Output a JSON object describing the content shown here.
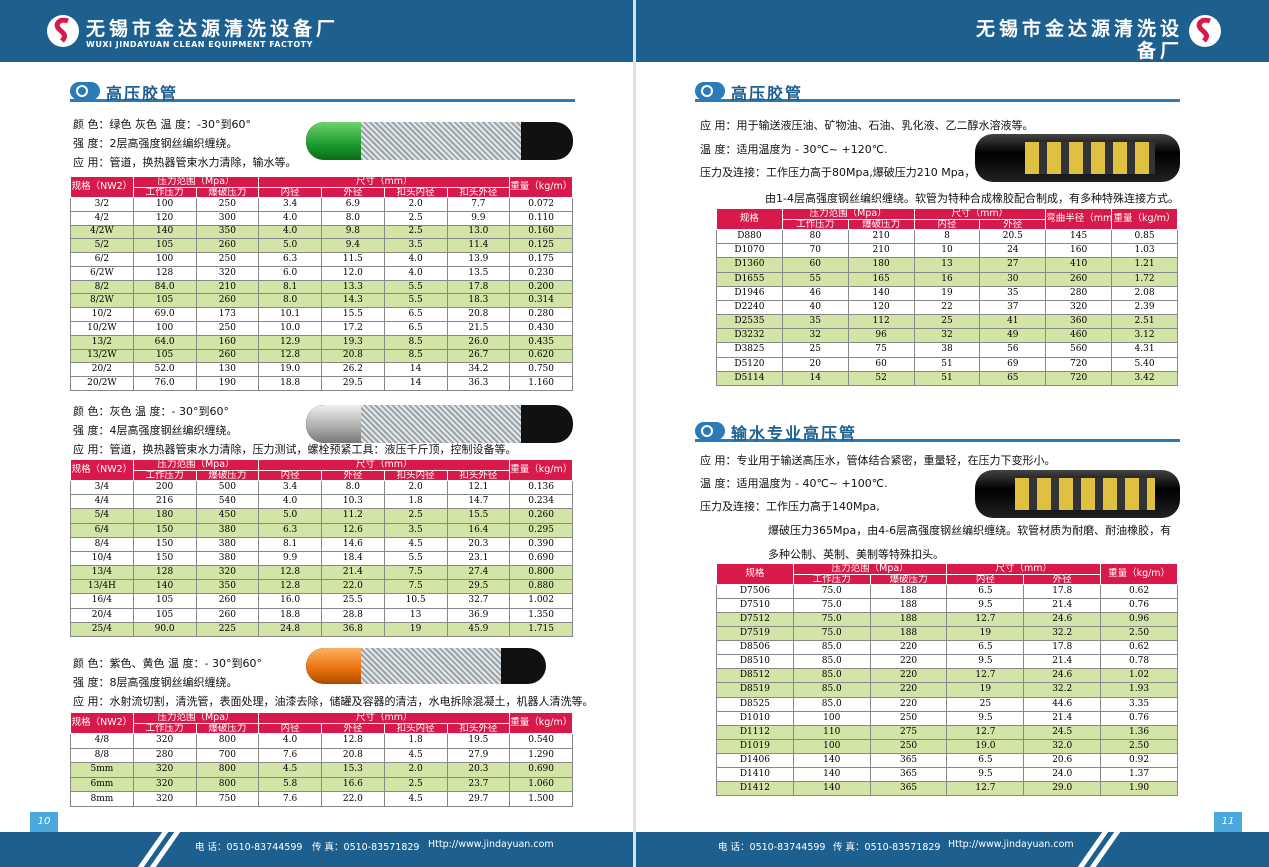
{
  "header": {
    "name": "无锡市金达源清洗设备厂",
    "name_en": "WUXI JINDAYUAN CLEAN EQUIPMENT FACTOTY"
  },
  "footer": {
    "phone": "电 话：0510-83744599",
    "fax": "传 真：0510-83571829",
    "url": "Http://www.jindayuan.com"
  },
  "page_numbers": [
    "10",
    "11"
  ],
  "left_page": {
    "section_title": "高压胶管",
    "products": [
      {
        "lines": [
          "颜 色：绿色 灰色 温 度：-30°到60°",
          "强 度：2层高强度钢丝编织缠绕。",
          "应 用：管道，换热器管束水力清除，输水等。"
        ],
        "table": {
          "columns": [
            {
              "label": "规格（NW2）"
            },
            {
              "label": "压力范围（Mpa）",
              "sub": [
                "工作压力",
                "爆破压力"
              ]
            },
            {
              "label": "尺寸（mm）",
              "sub": [
                "内径",
                "外径",
                "扣头内径",
                "扣头外径"
              ]
            },
            {
              "label": "重量（kg/m）"
            }
          ],
          "rows": [
            [
              "3/2",
              "100",
              "250",
              "3.4",
              "6.9",
              "2.0",
              "7.7",
              "0.072"
            ],
            [
              "4/2",
              "120",
              "300",
              "4.0",
              "8.0",
              "2.5",
              "9.9",
              "0.110"
            ],
            [
              "4/2W",
              "140",
              "350",
              "4.0",
              "9.8",
              "2.5",
              "13.0",
              "0.160"
            ],
            [
              "5/2",
              "105",
              "260",
              "5.0",
              "9.4",
              "3.5",
              "11.4",
              "0.125"
            ],
            [
              "6/2",
              "100",
              "250",
              "6.3",
              "11.5",
              "4.0",
              "13.9",
              "0.175"
            ],
            [
              "6/2W",
              "128",
              "320",
              "6.0",
              "12.0",
              "4.0",
              "13.5",
              "0.230"
            ],
            [
              "8/2",
              "84.0",
              "210",
              "8.1",
              "13.3",
              "5.5",
              "17.8",
              "0.200"
            ],
            [
              "8/2W",
              "105",
              "260",
              "8.0",
              "14.3",
              "5.5",
              "18.3",
              "0.314"
            ],
            [
              "10/2",
              "69.0",
              "173",
              "10.1",
              "15.5",
              "6.5",
              "20.8",
              "0.280"
            ],
            [
              "10/2W",
              "100",
              "250",
              "10.0",
              "17.2",
              "6.5",
              "21.5",
              "0.430"
            ],
            [
              "13/2",
              "64.0",
              "160",
              "12.9",
              "19.3",
              "8.5",
              "26.0",
              "0.435"
            ],
            [
              "13/2W",
              "105",
              "260",
              "12.8",
              "20.8",
              "8.5",
              "26.7",
              "0.620"
            ],
            [
              "20/2",
              "52.0",
              "130",
              "19.0",
              "26.2",
              "14",
              "34.2",
              "0.750"
            ],
            [
              "20/2W",
              "76.0",
              "190",
              "18.8",
              "29.5",
              "14",
              "36.3",
              "1.160"
            ]
          ]
        }
      },
      {
        "lines": [
          "颜 色：灰色 温 度：- 30°到60°",
          "强 度：4层高强度钢丝编织缠绕。",
          "应 用：管道，换热器管束水力清除，压力测试，螺栓预紧工具：液压千斤顶，控制设备等。"
        ],
        "table": {
          "columns": [
            {
              "label": "规格（NW2）"
            },
            {
              "label": "压力范围（Mpa）",
              "sub": [
                "工作压力",
                "爆破压力"
              ]
            },
            {
              "label": "尺寸（mm）",
              "sub": [
                "内径",
                "外径",
                "扣头内径",
                "扣头外径"
              ]
            },
            {
              "label": "重量（kg/m）"
            }
          ],
          "rows": [
            [
              "3/4",
              "200",
              "500",
              "3.4",
              "8.0",
              "2.0",
              "12.1",
              "0.136"
            ],
            [
              "4/4",
              "216",
              "540",
              "4.0",
              "10.3",
              "1.8",
              "14.7",
              "0.234"
            ],
            [
              "5/4",
              "180",
              "450",
              "5.0",
              "11.2",
              "2.5",
              "15.5",
              "0.260"
            ],
            [
              "6/4",
              "150",
              "380",
              "6.3",
              "12.6",
              "3.5",
              "16.4",
              "0.295"
            ],
            [
              "8/4",
              "150",
              "380",
              "8.1",
              "14.6",
              "4.5",
              "20.3",
              "0.390"
            ],
            [
              "10/4",
              "150",
              "380",
              "9.9",
              "18.4",
              "5.5",
              "23.1",
              "0.690"
            ],
            [
              "13/4",
              "128",
              "320",
              "12.8",
              "21.4",
              "7.5",
              "27.4",
              "0.800"
            ],
            [
              "13/4H",
              "140",
              "350",
              "12.8",
              "22.0",
              "7.5",
              "29.5",
              "0.880"
            ],
            [
              "16/4",
              "105",
              "260",
              "16.0",
              "25.5",
              "10.5",
              "32.7",
              "1.002"
            ],
            [
              "20/4",
              "105",
              "260",
              "18.8",
              "28.8",
              "13",
              "36.9",
              "1.350"
            ],
            [
              "25/4",
              "90.0",
              "225",
              "24.8",
              "36.8",
              "19",
              "45.9",
              "1.715"
            ]
          ]
        }
      },
      {
        "lines": [
          "颜 色：紫色、黄色 温 度：- 30°到60°",
          "强 度：8层高强度钢丝编织缠绕。",
          "应 用：水射流切割，清洗管，表面处理，油漆去除，储罐及容器的清洁，水电拆除混凝土，机器人清洗等。"
        ],
        "table": {
          "columns": [
            {
              "label": "规格（NW2）"
            },
            {
              "label": "压力范围（Mpa）",
              "sub": [
                "工作压力",
                "爆破压力"
              ]
            },
            {
              "label": "尺寸（mm）",
              "sub": [
                "内径",
                "外径",
                "扣头内径",
                "扣头外径"
              ]
            },
            {
              "label": "重量（kg/m）"
            }
          ],
          "rows": [
            [
              "4/8",
              "320",
              "800",
              "4.0",
              "12.8",
              "1.8",
              "19.5",
              "0.540"
            ],
            [
              "8/8",
              "280",
              "700",
              "7.6",
              "20.8",
              "4.5",
              "27.9",
              "1.290"
            ],
            [
              "5mm",
              "320",
              "800",
              "4.5",
              "15.3",
              "2.0",
              "20.3",
              "0.690"
            ],
            [
              "6mm",
              "320",
              "800",
              "5.8",
              "16.6",
              "2.5",
              "23.7",
              "1.060"
            ],
            [
              "8mm",
              "320",
              "750",
              "7.6",
              "22.0",
              "4.5",
              "29.7",
              "1.500"
            ]
          ]
        }
      }
    ]
  },
  "right_page": {
    "sections": [
      {
        "title": "高压胶管",
        "lines": [
          "应 用：用于输送液压油、矿物油、石油、乳化液、乙二醇水溶液等。",
          "温 度：适用温度为 - 30℃~ +120℃.",
          "压力及连接：工作压力高于80Mpa,爆破压力210 Mpa，",
          "由1-4层高强度钢丝编织缠绕。软管为特种合成橡胶配合制成，有多种特殊连接方式。"
        ],
        "table": {
          "columns": [
            {
              "label": "规格"
            },
            {
              "label": "压力范围（Mpa）",
              "sub": [
                "工作压力",
                "爆破压力"
              ]
            },
            {
              "label": "尺寸（mm）",
              "sub": [
                "内径",
                "外径"
              ]
            },
            {
              "label": "弯曲半径（mm）"
            },
            {
              "label": "重量（kg/m）"
            }
          ],
          "rows": [
            [
              "D880",
              "80",
              "210",
              "8",
              "20.5",
              "145",
              "0.85"
            ],
            [
              "D1070",
              "70",
              "210",
              "10",
              "24",
              "160",
              "1.03"
            ],
            [
              "D1360",
              "60",
              "180",
              "13",
              "27",
              "410",
              "1.21"
            ],
            [
              "D1655",
              "55",
              "165",
              "16",
              "30",
              "260",
              "1.72"
            ],
            [
              "D1946",
              "46",
              "140",
              "19",
              "35",
              "280",
              "2.08"
            ],
            [
              "D2240",
              "40",
              "120",
              "22",
              "37",
              "320",
              "2.39"
            ],
            [
              "D2535",
              "35",
              "112",
              "25",
              "41",
              "360",
              "2.51"
            ],
            [
              "D3232",
              "32",
              "96",
              "32",
              "49",
              "460",
              "3.12"
            ],
            [
              "D3825",
              "25",
              "75",
              "38",
              "56",
              "560",
              "4.31"
            ],
            [
              "D5120",
              "20",
              "60",
              "51",
              "69",
              "720",
              "5.40"
            ],
            [
              "D5114",
              "14",
              "52",
              "51",
              "65",
              "720",
              "3.42"
            ]
          ]
        }
      },
      {
        "title": "输水专业高压管",
        "lines": [
          "应 用：专业用于输送高压水，管体结合紧密，重量轻，在压力下变形小。",
          "温 度：适用温度为 - 40℃~ +100℃.",
          "压力及连接：工作压力高于140Mpa,",
          "爆破压力365Mpa，由4-6层高强度钢丝编织缠绕。软管材质为耐磨、耐油橡胶，有",
          "多种公制、英制、美制等特殊扣头。"
        ],
        "table": {
          "columns": [
            {
              "label": "规格"
            },
            {
              "label": "压力范围（Mpa）",
              "sub": [
                "工作压力",
                "爆破压力"
              ]
            },
            {
              "label": "尺寸（mm）",
              "sub": [
                "内径",
                "外径"
              ]
            },
            {
              "label": "重量（kg/m）"
            }
          ],
          "rows": [
            [
              "D7506",
              "75.0",
              "188",
              "6.5",
              "17.8",
              "0.62"
            ],
            [
              "D7510",
              "75.0",
              "188",
              "9.5",
              "21.4",
              "0.76"
            ],
            [
              "D7512",
              "75.0",
              "188",
              "12.7",
              "24.6",
              "0.96"
            ],
            [
              "D7519",
              "75.0",
              "188",
              "19",
              "32.2",
              "2.50"
            ],
            [
              "D8506",
              "85.0",
              "220",
              "6.5",
              "17.8",
              "0.62"
            ],
            [
              "D8510",
              "85.0",
              "220",
              "9.5",
              "21.4",
              "0.78"
            ],
            [
              "D8512",
              "85.0",
              "220",
              "12.7",
              "24.6",
              "1.02"
            ],
            [
              "D8519",
              "85.0",
              "220",
              "19",
              "32.2",
              "1.93"
            ],
            [
              "D8525",
              "85.0",
              "220",
              "25",
              "44.6",
              "3.35"
            ],
            [
              "D1010",
              "100",
              "250",
              "9.5",
              "21.4",
              "0.76"
            ],
            [
              "D1112",
              "110",
              "275",
              "12.7",
              "24.5",
              "1.36"
            ],
            [
              "D1019",
              "100",
              "250",
              "19.0",
              "32.0",
              "2.50"
            ],
            [
              "D1406",
              "140",
              "365",
              "6.5",
              "20.6",
              "0.92"
            ],
            [
              "D1410",
              "140",
              "365",
              "9.5",
              "24.0",
              "1.37"
            ],
            [
              "D1412",
              "140",
              "365",
              "12.7",
              "29.0",
              "1.90"
            ]
          ]
        }
      }
    ]
  }
}
